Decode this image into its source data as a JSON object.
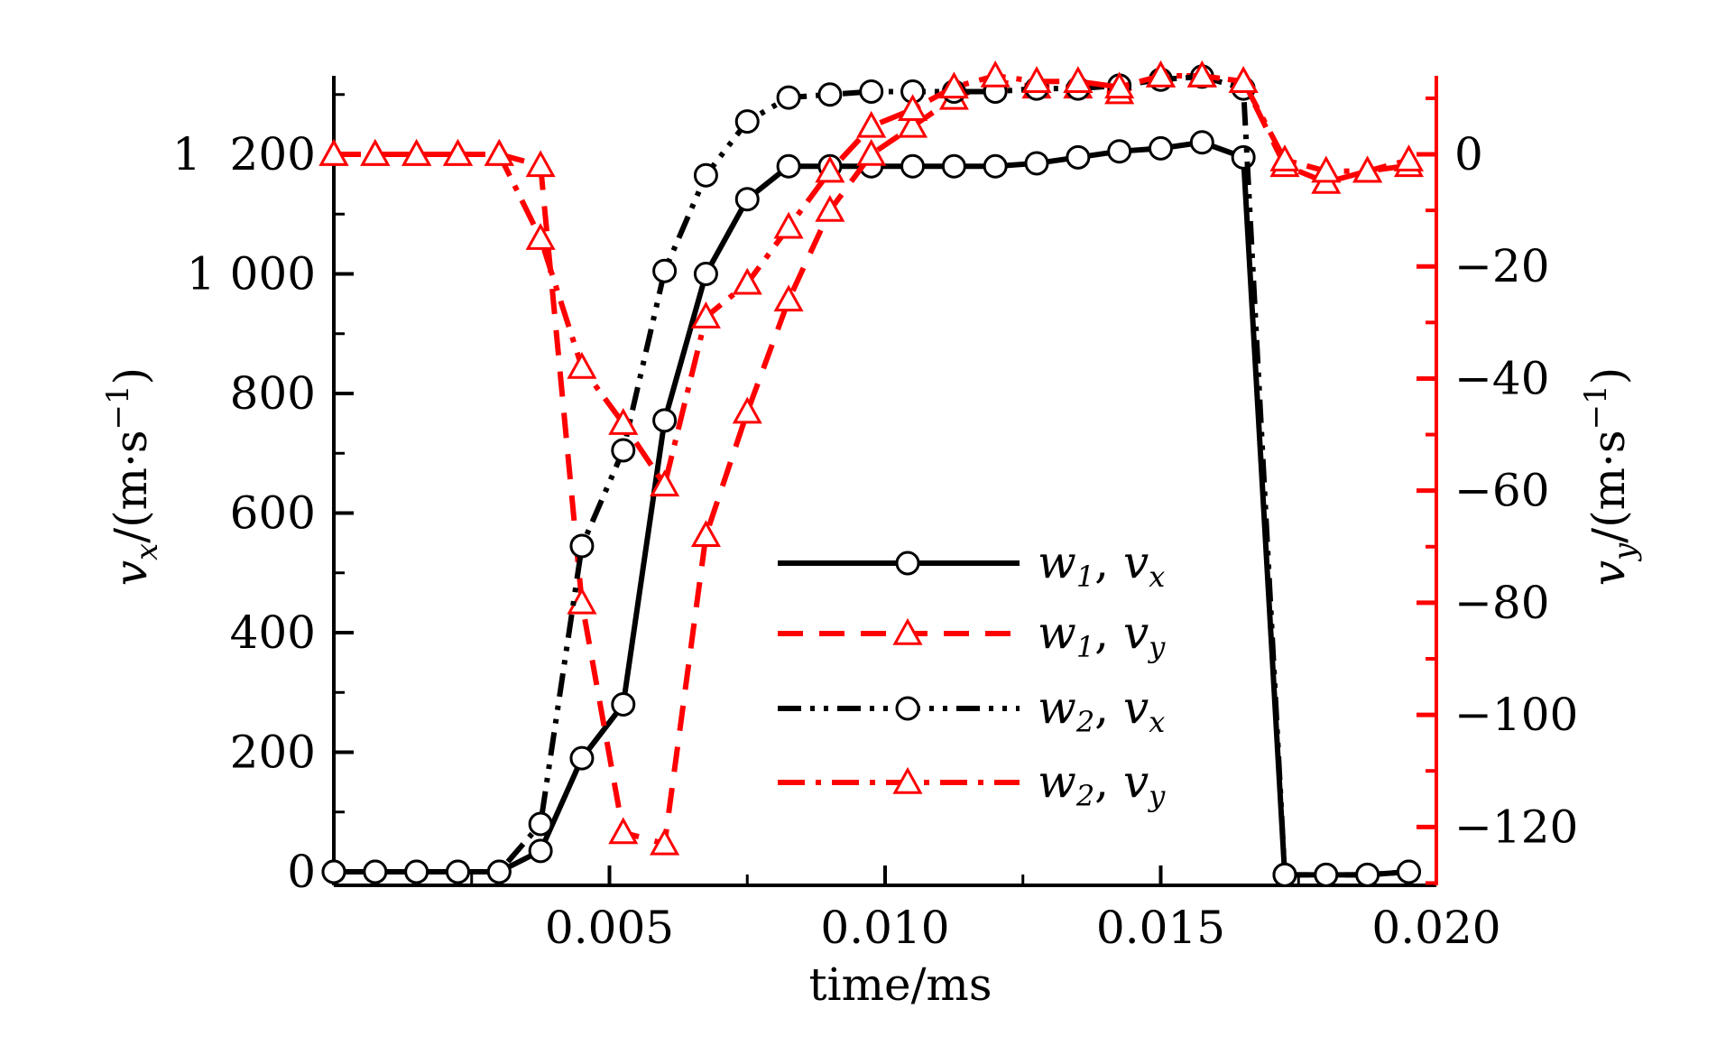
{
  "chart_data": {
    "type": "line",
    "xlabel": "time/ms",
    "ylabel_left": {
      "base": "v",
      "sub": "x",
      "unit": "/(m·s",
      "sup": "−1",
      "close": ")"
    },
    "ylabel_right": {
      "base": "v",
      "sub": "y",
      "unit": "/(m·s",
      "sup": "−1",
      "close": ")"
    },
    "xlim": [
      0,
      0.02
    ],
    "ylim_left": [
      0,
      1300
    ],
    "ylim_right": [
      -130,
      15
    ],
    "x_ticks": [
      {
        "value": 0.005,
        "label": "0.005"
      },
      {
        "value": 0.01,
        "label": "0.010"
      },
      {
        "value": 0.015,
        "label": "0.015"
      },
      {
        "value": 0.02,
        "label": "0.020"
      }
    ],
    "y_left_ticks": [
      {
        "value": 0,
        "label": "0"
      },
      {
        "value": 200,
        "label": "200"
      },
      {
        "value": 400,
        "label": "400"
      },
      {
        "value": 600,
        "label": "600"
      },
      {
        "value": 800,
        "label": "800"
      },
      {
        "value": 1000,
        "label": "1 000"
      },
      {
        "value": 1200,
        "label": "1  200"
      }
    ],
    "y_right_ticks": [
      {
        "value": 0,
        "label": "0"
      },
      {
        "value": -20,
        "label": "−20"
      },
      {
        "value": -40,
        "label": "−40"
      },
      {
        "value": -60,
        "label": "−60"
      },
      {
        "value": -80,
        "label": "−80"
      },
      {
        "value": -100,
        "label": "−100"
      },
      {
        "value": -120,
        "label": "−120"
      }
    ],
    "legend_position": "center-right",
    "series": [
      {
        "id": "w1vx",
        "legend": {
          "w": "w",
          "wsub": "1",
          "v": "v",
          "vsub": "x"
        },
        "axis": "left",
        "color": "#000000",
        "line": "solid",
        "marker": "circle",
        "x": [
          0,
          0.00075,
          0.0015,
          0.00225,
          0.003,
          0.00375,
          0.0045,
          0.00525,
          0.006,
          0.00675,
          0.0075,
          0.00825,
          0.009,
          0.00975,
          0.0105,
          0.01125,
          0.012,
          0.01275,
          0.0135,
          0.01425,
          0.015,
          0.01575,
          0.0165,
          0.01725,
          0.018,
          0.01875,
          0.0195
        ],
        "y": [
          0,
          0,
          0,
          0,
          0,
          35,
          190,
          280,
          755,
          1000,
          1125,
          1180,
          1180,
          1180,
          1180,
          1180,
          1180,
          1185,
          1195,
          1205,
          1210,
          1220,
          1195,
          -5,
          -5,
          -5,
          0
        ]
      },
      {
        "id": "w1vy",
        "legend": {
          "w": "w",
          "wsub": "1",
          "v": "v",
          "vsub": "y"
        },
        "axis": "right",
        "color": "#ff0000",
        "line": "dash",
        "marker": "triangle",
        "x": [
          0,
          0.00075,
          0.0015,
          0.00225,
          0.003,
          0.00375,
          0.0045,
          0.00525,
          0.006,
          0.00675,
          0.0075,
          0.00825,
          0.009,
          0.00975,
          0.0105,
          0.01125,
          0.012,
          0.01275,
          0.0135,
          0.01425,
          0.015,
          0.01575,
          0.0165,
          0.01725,
          0.018,
          0.01875,
          0.0195
        ],
        "y": [
          0,
          0,
          0,
          0,
          0,
          -2,
          -80,
          -121,
          -123,
          -68,
          -46,
          -26,
          -10,
          0,
          5,
          10,
          13,
          12,
          12,
          11,
          14,
          14,
          13,
          -2,
          -5,
          -3,
          -2
        ]
      },
      {
        "id": "w2vx",
        "legend": {
          "w": "w",
          "wsub": "2",
          "v": "v",
          "vsub": "x"
        },
        "axis": "left",
        "color": "#000000",
        "line": "dashdotdot",
        "marker": "circle",
        "x": [
          0,
          0.00075,
          0.0015,
          0.00225,
          0.003,
          0.00375,
          0.0045,
          0.00525,
          0.006,
          0.00675,
          0.0075,
          0.00825,
          0.009,
          0.00975,
          0.0105,
          0.01125,
          0.012,
          0.01275,
          0.0135,
          0.01425,
          0.015,
          0.01575,
          0.0165,
          0.01725,
          0.018,
          0.01875,
          0.0195
        ],
        "y": [
          0,
          0,
          0,
          0,
          0,
          80,
          545,
          705,
          1005,
          1165,
          1255,
          1295,
          1300,
          1305,
          1305,
          1305,
          1305,
          1310,
          1310,
          1315,
          1325,
          1330,
          1310,
          -5,
          -5,
          -5,
          0
        ]
      },
      {
        "id": "w2vy",
        "legend": {
          "w": "w",
          "wsub": "2",
          "v": "v",
          "vsub": "y"
        },
        "axis": "right",
        "color": "#ff0000",
        "line": "dashdot",
        "marker": "triangle",
        "x": [
          0,
          0.00075,
          0.0015,
          0.00225,
          0.003,
          0.00375,
          0.0045,
          0.00525,
          0.006,
          0.00675,
          0.0075,
          0.00825,
          0.009,
          0.00975,
          0.0105,
          0.01125,
          0.012,
          0.01275,
          0.0135,
          0.01425,
          0.015,
          0.01575,
          0.0165,
          0.01725,
          0.018,
          0.01875,
          0.0195
        ],
        "y": [
          0,
          0,
          0,
          0,
          0,
          -15,
          -38,
          -48,
          -59,
          -29,
          -23,
          -13,
          -3,
          5,
          8,
          12,
          14,
          13,
          13,
          12,
          14,
          14,
          13,
          -1,
          -3,
          -3,
          -1
        ]
      }
    ]
  }
}
